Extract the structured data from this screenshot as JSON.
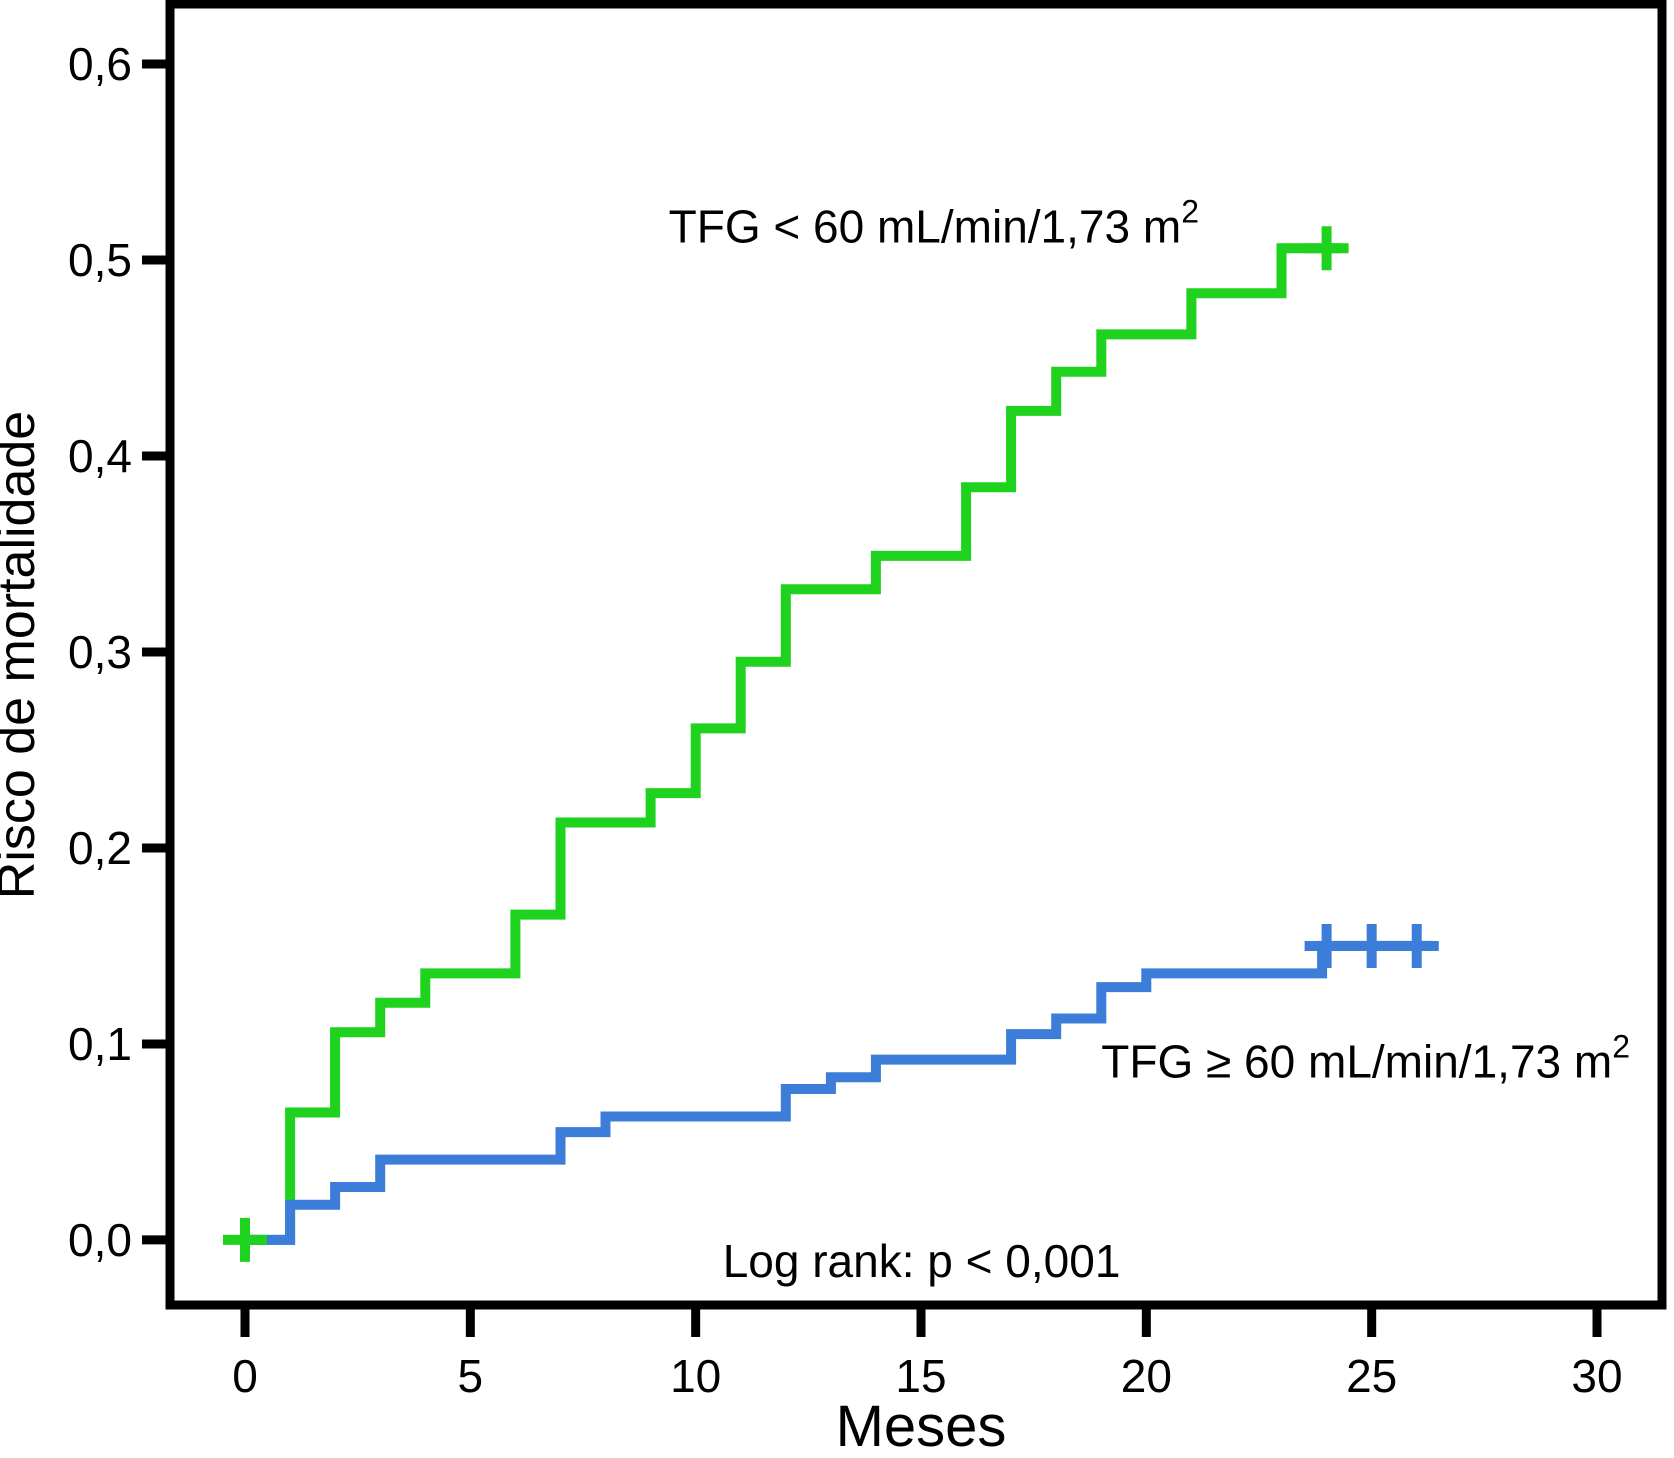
{
  "figure": {
    "background": "#ffffff",
    "axis_color": "#000000"
  },
  "chart_data": {
    "type": "line",
    "subtype": "kaplan-meier-cumulative-risk-step",
    "title": "",
    "xlabel": "Meses",
    "ylabel": "Risco de mortalidade",
    "grid": false,
    "legend_position": "inline-curve-annotations",
    "xlim": [
      -1.664,
      31.442
    ],
    "ylim": [
      -0.0332,
      0.6306
    ],
    "xticks": {
      "values": [
        0,
        5,
        10,
        15,
        20,
        25,
        30
      ],
      "labels": [
        "0",
        "5",
        "10",
        "15",
        "20",
        "25",
        "30"
      ]
    },
    "yticks": {
      "values": [
        0.0,
        0.1,
        0.2,
        0.3,
        0.4,
        0.5,
        0.6
      ],
      "labels": [
        "0,0",
        "0,1",
        "0,2",
        "0,3",
        "0,4",
        "0,5",
        "0,6"
      ]
    },
    "series": [
      {
        "name": "TFG < 60 mL/min/1,73 m2",
        "label_text": "TFG < 60 mL/min/1,73 m",
        "label_sup": "2",
        "color": "#1ED21E",
        "step_points": [
          [
            0,
            0.0
          ],
          [
            1,
            0.065
          ],
          [
            2,
            0.106
          ],
          [
            3,
            0.121
          ],
          [
            4,
            0.136
          ],
          [
            6,
            0.166
          ],
          [
            7,
            0.213
          ],
          [
            9,
            0.228
          ],
          [
            10,
            0.261
          ],
          [
            11,
            0.295
          ],
          [
            12,
            0.332
          ],
          [
            14,
            0.349
          ],
          [
            16,
            0.384
          ],
          [
            17,
            0.423
          ],
          [
            18,
            0.443
          ],
          [
            19,
            0.462
          ],
          [
            21,
            0.483
          ],
          [
            23,
            0.506
          ]
        ],
        "end_x": 24.3,
        "censor_marks": [
          [
            0,
            0.0
          ],
          [
            24,
            0.506
          ]
        ],
        "label_anchor": [
          9.4,
          0.509
        ]
      },
      {
        "name": "TFG >= 60 mL/min/1,73 m2",
        "label_text": "TFG ≥ 60 mL/min/1,73 m",
        "label_sup": "2",
        "color": "#3B7DD8",
        "step_points": [
          [
            0,
            0.0
          ],
          [
            1,
            0.018
          ],
          [
            2,
            0.027
          ],
          [
            3,
            0.041
          ],
          [
            7,
            0.055
          ],
          [
            8,
            0.063
          ],
          [
            12,
            0.077
          ],
          [
            13,
            0.083
          ],
          [
            14,
            0.092
          ],
          [
            17,
            0.105
          ],
          [
            18,
            0.113
          ],
          [
            19,
            0.129
          ],
          [
            20,
            0.136
          ],
          [
            23.9,
            0.15
          ]
        ],
        "end_x": 26.35,
        "censor_marks": [
          [
            24,
            0.15
          ],
          [
            25,
            0.15
          ],
          [
            26,
            0.15
          ]
        ],
        "label_anchor": [
          19.0,
          0.083
        ]
      }
    ],
    "annotations": [
      {
        "text": "Log rank: p < 0,001",
        "anchor": [
          10.6,
          -0.019
        ]
      }
    ]
  }
}
